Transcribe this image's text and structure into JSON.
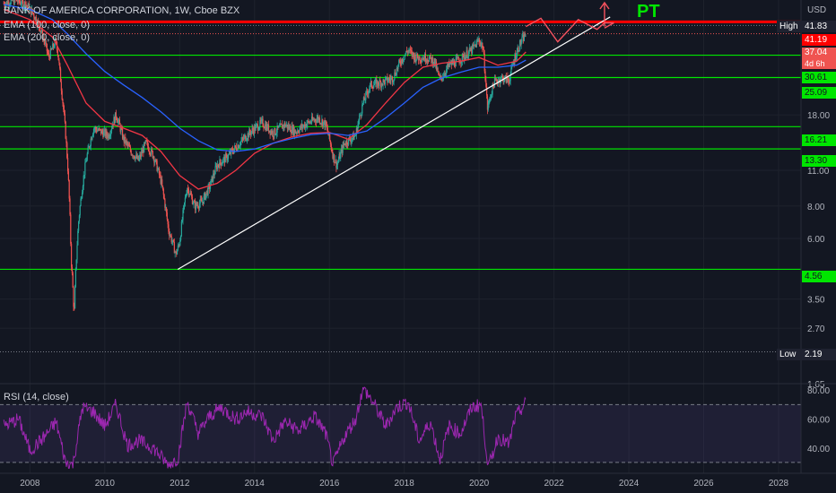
{
  "header": {
    "title": "BANK OF AMERICA CORPORATION, 1W, Cboe BZX",
    "ema100": "EMA (100, close, 0)",
    "ema200": "EMA (200, close, 0)",
    "currency": "USD",
    "rsi_label": "RSI (14, close)",
    "pt_label": "PT"
  },
  "price_labels": {
    "high_text": "High",
    "high_value": "41.83",
    "resistance": "41.19",
    "last_price": "37.04",
    "countdown": "4d 6h",
    "low_text": "Low",
    "low_value": "2.19"
  },
  "colors": {
    "background": "#131722",
    "candle_up": "#26a69a",
    "candle_down": "#ef5350",
    "ema100": "#f23645",
    "ema200": "#2962ff",
    "support": "#00e600",
    "resistance": "#ff0000",
    "trendline": "#ffffff",
    "rsi": "#9c27b0",
    "projection": "#f7525f"
  },
  "chart_data": {
    "type": "line",
    "title": "BANK OF AMERICA CORPORATION, 1W, Cboe BZX",
    "x_range": [
      2007.2,
      2028.6
    ],
    "y_scale": "log",
    "y_range": [
      1.65,
      50
    ],
    "x_ticks": [
      "2008",
      "2010",
      "2012",
      "2014",
      "2016",
      "2018",
      "2020",
      "2022",
      "2024",
      "2026",
      "2028"
    ],
    "y_ticks": [
      "18.00",
      "11.00",
      "8.00",
      "6.00",
      "3.50",
      "2.70",
      "1.65"
    ],
    "series": [
      {
        "name": "close",
        "color": "#26a69a",
        "points": [
          [
            2007.3,
            48.5
          ],
          [
            2007.6,
            50
          ],
          [
            2007.9,
            48
          ],
          [
            2008.1,
            44
          ],
          [
            2008.3,
            38
          ],
          [
            2008.5,
            30
          ],
          [
            2008.7,
            35
          ],
          [
            2008.85,
            22
          ],
          [
            2009.0,
            12
          ],
          [
            2009.1,
            5
          ],
          [
            2009.18,
            3.0
          ],
          [
            2009.3,
            7
          ],
          [
            2009.5,
            12
          ],
          [
            2009.7,
            16
          ],
          [
            2009.9,
            15.5
          ],
          [
            2010.1,
            15
          ],
          [
            2010.3,
            18
          ],
          [
            2010.5,
            14.5
          ],
          [
            2010.7,
            13
          ],
          [
            2010.9,
            12
          ],
          [
            2011.1,
            14
          ],
          [
            2011.3,
            12.5
          ],
          [
            2011.5,
            10
          ],
          [
            2011.7,
            6.5
          ],
          [
            2011.9,
            5.2
          ],
          [
            2012.0,
            5.8
          ],
          [
            2012.2,
            9.5
          ],
          [
            2012.4,
            8
          ],
          [
            2012.6,
            8.3
          ],
          [
            2012.8,
            9.5
          ],
          [
            2013.0,
            11.5
          ],
          [
            2013.3,
            12.5
          ],
          [
            2013.6,
            14
          ],
          [
            2013.9,
            15.5
          ],
          [
            2014.2,
            16.8
          ],
          [
            2014.5,
            15.3
          ],
          [
            2014.8,
            16.5
          ],
          [
            2015.1,
            15.5
          ],
          [
            2015.4,
            16.7
          ],
          [
            2015.7,
            17.5
          ],
          [
            2015.9,
            16.5
          ],
          [
            2016.1,
            12.5
          ],
          [
            2016.2,
            11.5
          ],
          [
            2016.4,
            14
          ],
          [
            2016.7,
            15
          ],
          [
            2016.9,
            20
          ],
          [
            2017.1,
            23.5
          ],
          [
            2017.4,
            24
          ],
          [
            2017.7,
            25
          ],
          [
            2017.9,
            29
          ],
          [
            2018.1,
            32
          ],
          [
            2018.3,
            30
          ],
          [
            2018.6,
            30
          ],
          [
            2018.8,
            29
          ],
          [
            2018.95,
            24.5
          ],
          [
            2019.2,
            28
          ],
          [
            2019.5,
            29.5
          ],
          [
            2019.8,
            32
          ],
          [
            2020.0,
            35
          ],
          [
            2020.1,
            33
          ],
          [
            2020.22,
            19
          ],
          [
            2020.4,
            24
          ],
          [
            2020.6,
            25
          ],
          [
            2020.8,
            24.5
          ],
          [
            2020.95,
            30
          ],
          [
            2021.1,
            34
          ],
          [
            2021.25,
            37.04
          ]
        ]
      },
      {
        "name": "EMA (100, close, 0)",
        "color": "#f23645",
        "points": [
          [
            2007.3,
            46
          ],
          [
            2008.0,
            42
          ],
          [
            2008.6,
            36
          ],
          [
            2009.0,
            28
          ],
          [
            2009.5,
            20
          ],
          [
            2010.0,
            17
          ],
          [
            2010.5,
            16
          ],
          [
            2011.0,
            15
          ],
          [
            2011.5,
            13
          ],
          [
            2012.0,
            10.5
          ],
          [
            2012.5,
            9.3
          ],
          [
            2013.0,
            9.8
          ],
          [
            2013.5,
            11
          ],
          [
            2014.0,
            12.8
          ],
          [
            2014.5,
            14
          ],
          [
            2015.0,
            14.8
          ],
          [
            2015.5,
            15.3
          ],
          [
            2016.0,
            15.4
          ],
          [
            2016.5,
            14.5
          ],
          [
            2017.0,
            16.5
          ],
          [
            2017.5,
            20
          ],
          [
            2018.0,
            24
          ],
          [
            2018.5,
            27.5
          ],
          [
            2019.0,
            28.5
          ],
          [
            2019.5,
            29
          ],
          [
            2020.0,
            30
          ],
          [
            2020.5,
            28
          ],
          [
            2021.0,
            29
          ],
          [
            2021.25,
            31.5
          ]
        ]
      },
      {
        "name": "EMA (200, close, 0)",
        "color": "#2962ff",
        "points": [
          [
            2007.3,
            48
          ],
          [
            2008.0,
            46
          ],
          [
            2008.6,
            42
          ],
          [
            2009.0,
            37
          ],
          [
            2009.5,
            31
          ],
          [
            2010.0,
            26.5
          ],
          [
            2010.5,
            23.5
          ],
          [
            2011.0,
            21
          ],
          [
            2011.5,
            18.5
          ],
          [
            2012.0,
            16
          ],
          [
            2012.5,
            14.3
          ],
          [
            2013.0,
            13.2
          ],
          [
            2013.5,
            13
          ],
          [
            2014.0,
            13.3
          ],
          [
            2014.5,
            14
          ],
          [
            2015.0,
            14.6
          ],
          [
            2015.5,
            15.1
          ],
          [
            2016.0,
            15.3
          ],
          [
            2016.5,
            15
          ],
          [
            2017.0,
            15.6
          ],
          [
            2017.5,
            17.5
          ],
          [
            2018.0,
            20
          ],
          [
            2018.5,
            23
          ],
          [
            2019.0,
            25
          ],
          [
            2019.5,
            26.3
          ],
          [
            2020.0,
            27.5
          ],
          [
            2020.5,
            27.5
          ],
          [
            2021.0,
            28
          ],
          [
            2021.25,
            29.3
          ]
        ]
      }
    ],
    "horizontal_levels": [
      41.19,
      30.61,
      25.09,
      16.21,
      13.3,
      4.56
    ],
    "high": 41.83,
    "low": 2.19,
    "trendline": [
      [
        2011.95,
        4.56
      ],
      [
        2023.5,
        43
      ]
    ],
    "projection_path": [
      [
        2021.25,
        39.5
      ],
      [
        2021.65,
        42.5
      ],
      [
        2022.1,
        34.5
      ],
      [
        2022.65,
        42
      ],
      [
        2023.15,
        38.5
      ],
      [
        2023.35,
        40.8
      ],
      [
        2023.6,
        40.8
      ],
      [
        2023.35,
        39
      ]
    ],
    "rsi": {
      "label": "RSI (14, close)",
      "y_range": [
        25,
        82
      ],
      "y_ticks": [
        "80.00",
        "60.00",
        "40.00"
      ],
      "bands": [
        70,
        30
      ],
      "points": [
        [
          2007.3,
          55
        ],
        [
          2007.7,
          60
        ],
        [
          2008.0,
          38
        ],
        [
          2008.4,
          48
        ],
        [
          2008.7,
          58
        ],
        [
          2008.95,
          30
        ],
        [
          2009.15,
          28
        ],
        [
          2009.4,
          68
        ],
        [
          2009.7,
          65
        ],
        [
          2010.0,
          55
        ],
        [
          2010.3,
          70
        ],
        [
          2010.6,
          42
        ],
        [
          2010.9,
          45
        ],
        [
          2011.3,
          40
        ],
        [
          2011.7,
          28
        ],
        [
          2011.95,
          33
        ],
        [
          2012.2,
          72
        ],
        [
          2012.5,
          50
        ],
        [
          2012.8,
          62
        ],
        [
          2013.1,
          68
        ],
        [
          2013.5,
          60
        ],
        [
          2013.8,
          65
        ],
        [
          2014.2,
          62
        ],
        [
          2014.5,
          45
        ],
        [
          2014.8,
          58
        ],
        [
          2015.2,
          52
        ],
        [
          2015.6,
          62
        ],
        [
          2015.9,
          50
        ],
        [
          2016.1,
          28
        ],
        [
          2016.4,
          48
        ],
        [
          2016.7,
          60
        ],
        [
          2016.9,
          82
        ],
        [
          2017.2,
          70
        ],
        [
          2017.5,
          55
        ],
        [
          2017.8,
          68
        ],
        [
          2018.1,
          72
        ],
        [
          2018.4,
          45
        ],
        [
          2018.7,
          58
        ],
        [
          2018.95,
          32
        ],
        [
          2019.2,
          55
        ],
        [
          2019.5,
          50
        ],
        [
          2019.8,
          68
        ],
        [
          2020.05,
          70
        ],
        [
          2020.25,
          26
        ],
        [
          2020.5,
          48
        ],
        [
          2020.8,
          42
        ],
        [
          2020.95,
          60
        ],
        [
          2021.1,
          66
        ],
        [
          2021.25,
          71
        ]
      ]
    }
  }
}
